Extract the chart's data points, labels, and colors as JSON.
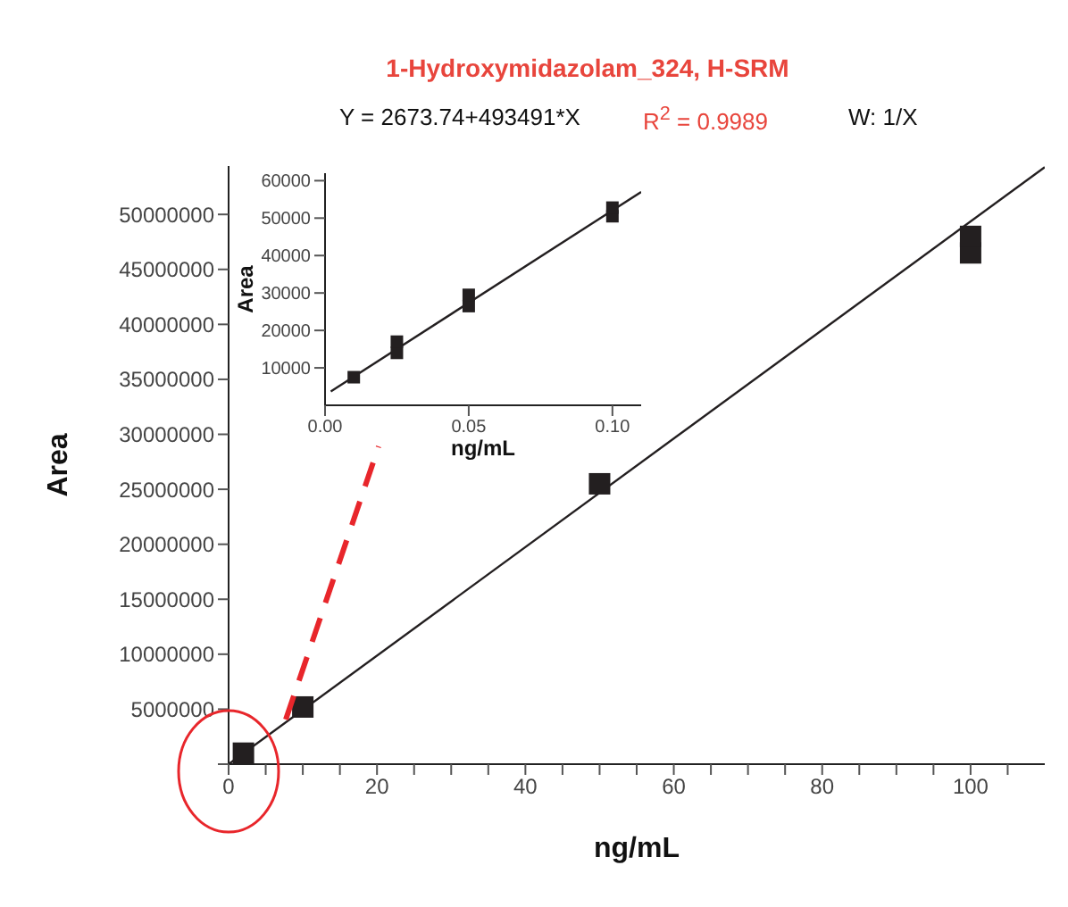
{
  "chart_data": [
    {
      "type": "scatter",
      "title": "1-Hydroxymidazolam_324, H-SRM",
      "annotations": [
        "Y = 2673.74+493491*X",
        "R$^{2}$ = 0.9989",
        "W: 1/X"
      ],
      "xlabel": "ng/mL",
      "ylabel": "Area",
      "xlim": [
        0,
        110
      ],
      "xticks": [
        0,
        {
          "value": 5,
          "label": null
        },
        {
          "value": 10,
          "label": null
        },
        {
          "value": 15,
          "label": null
        },
        20,
        {
          "value": 25,
          "label": null
        },
        {
          "value": 30,
          "label": null
        },
        {
          "value": 35,
          "label": null
        },
        40,
        {
          "value": 45,
          "label": null
        },
        {
          "value": 50,
          "label": null
        },
        {
          "value": 55,
          "label": null
        },
        60,
        {
          "value": 65,
          "label": null
        },
        {
          "value": 70,
          "label": null
        },
        {
          "value": 75,
          "label": null
        },
        80,
        {
          "value": 85,
          "label": null
        },
        {
          "value": 90,
          "label": null
        },
        {
          "value": 95,
          "label": null
        },
        100,
        {
          "value": 105,
          "label": null
        }
      ],
      "ylim": [
        0,
        54400000
      ],
      "yticks": [
        {
          "value": 0,
          "label": null
        },
        5000000,
        10000000,
        15000000,
        20000000,
        25000000,
        30000000,
        35000000,
        40000000,
        45000000,
        50000000
      ],
      "grid": false,
      "legend": false,
      "series": [
        {
          "type": "line",
          "marker": "none",
          "color": "#231f20",
          "x": [
            0,
            110
          ],
          "values": [
            0,
            54300000
          ]
        },
        {
          "marker": "square",
          "color": "#231f20",
          "x": [
            2,
            10,
            50,
            100,
            100
          ],
          "values": [
            1000000,
            5200000,
            25500000,
            46500000,
            48000000
          ]
        }
      ]
    },
    {
      "type": "scatter",
      "xlabel": "ng/mL",
      "ylabel": "Area",
      "xlim": [
        0,
        0.11
      ],
      "xticks": [
        {
          "value": 0,
          "label": "0.00"
        },
        0.05,
        {
          "value": 0.1,
          "label": "0.10"
        }
      ],
      "ylim": [
        0,
        62000
      ],
      "yticks": [
        10000,
        20000,
        30000,
        40000,
        50000,
        60000
      ],
      "grid": false,
      "legend": false,
      "series": [
        {
          "type": "line",
          "marker": "none",
          "color": "#231f20",
          "x": [
            0.002,
            0.11
          ],
          "values": [
            3700,
            57000
          ]
        },
        {
          "marker": "square",
          "color": "#231f20",
          "x": [
            0.01,
            0.025,
            0.025,
            0.05,
            0.05,
            0.1,
            0.1
          ],
          "values": [
            7500,
            14000,
            17000,
            26500,
            29500,
            50500,
            52800
          ]
        }
      ]
    }
  ]
}
